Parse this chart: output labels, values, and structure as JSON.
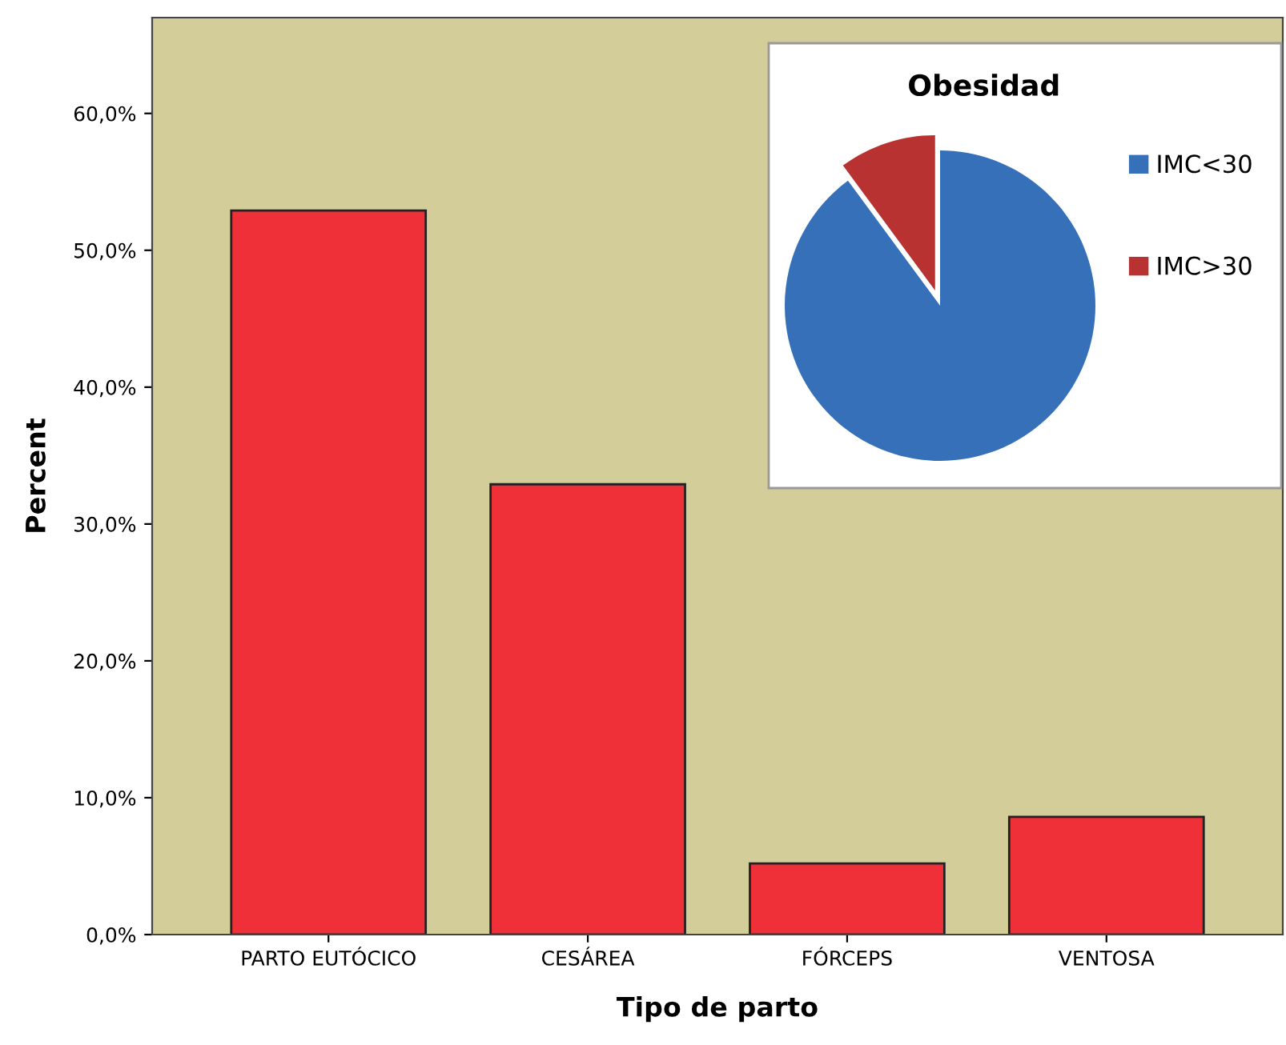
{
  "chart_data": [
    {
      "type": "bar",
      "xlabel": "Tipo de parto",
      "ylabel": "Percent",
      "categories": [
        "PARTO EUTÓCICO",
        "CESÁREA",
        "FÓRCEPS",
        "VENTOSA"
      ],
      "values": [
        52.9,
        32.9,
        5.2,
        8.6
      ],
      "color": "#ef3038",
      "ylim": [
        0,
        67
      ],
      "yticks": [
        {
          "value": 0,
          "label": "0,0%"
        },
        {
          "value": 10,
          "label": "10,0%"
        },
        {
          "value": 20,
          "label": "20,0%"
        },
        {
          "value": 30,
          "label": "30,0%"
        },
        {
          "value": 40,
          "label": "40,0%"
        },
        {
          "value": 50,
          "label": "50,0%"
        },
        {
          "value": 60,
          "label": "60,0%"
        }
      ],
      "grid": false
    },
    {
      "type": "pie",
      "title": "Obesidad",
      "categories": [
        "IMC<30",
        "IMC>30"
      ],
      "values": [
        89.9,
        10.1
      ],
      "colors": [
        "#3670b8",
        "#b83232"
      ],
      "legend": "right"
    }
  ]
}
